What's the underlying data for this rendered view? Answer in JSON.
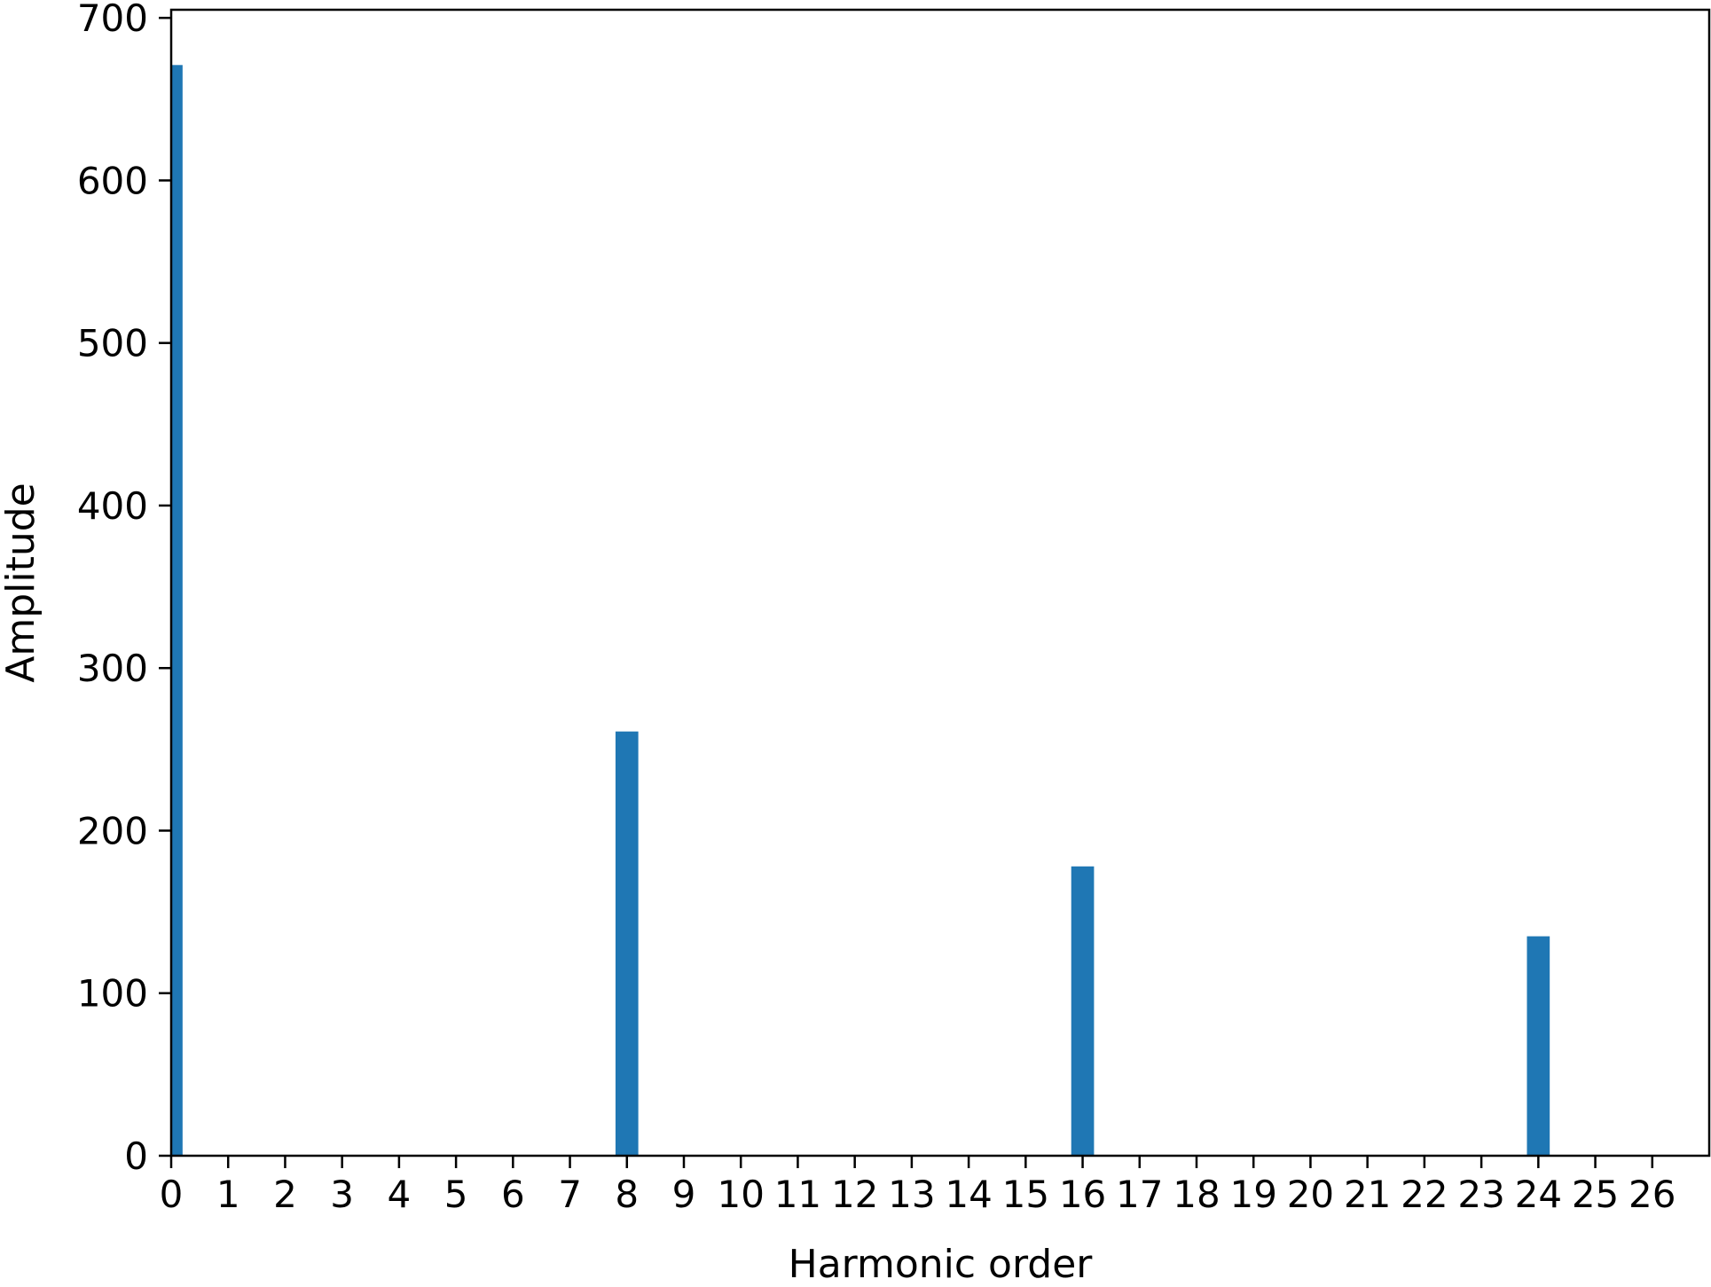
{
  "chart_data": {
    "type": "bar",
    "title": "",
    "xlabel": "Harmonic order",
    "ylabel": "Amplitude",
    "x": [
      0,
      8,
      16,
      24
    ],
    "values": [
      671,
      261,
      178,
      135
    ],
    "xlim": [
      0,
      27
    ],
    "ylim": [
      0,
      705
    ],
    "xticks": [
      0,
      1,
      2,
      3,
      4,
      5,
      6,
      7,
      8,
      9,
      10,
      11,
      12,
      13,
      14,
      15,
      16,
      17,
      18,
      19,
      20,
      21,
      22,
      23,
      24,
      25,
      26
    ],
    "yticks": [
      0,
      100,
      200,
      300,
      400,
      500,
      600,
      700
    ],
    "bar_color": "#1f77b4",
    "grid": false,
    "legend": "none"
  }
}
